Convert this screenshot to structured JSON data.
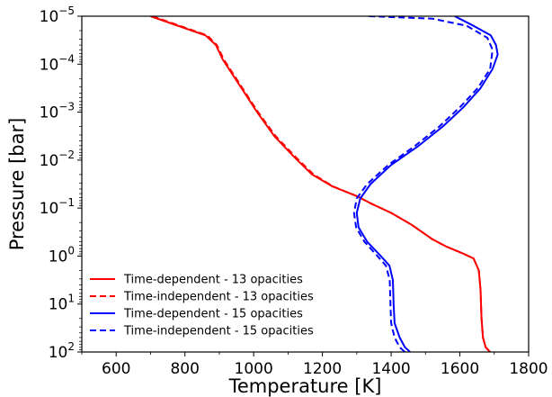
{
  "chart_data": {
    "type": "line",
    "xlabel": "Temperature [K]",
    "ylabel": "Pressure [bar]",
    "xlim": [
      500,
      1800
    ],
    "ylim_log10": [
      2,
      -5
    ],
    "y_scale": "log",
    "y_inverted": true,
    "grid": false,
    "legend_position": "lower-left",
    "x_ticks": [
      {
        "value": 600,
        "label": "600"
      },
      {
        "value": 800,
        "label": "800"
      },
      {
        "value": 1000,
        "label": "1000"
      },
      {
        "value": 1200,
        "label": "1200"
      },
      {
        "value": 1400,
        "label": "1400"
      },
      {
        "value": 1600,
        "label": "1600"
      },
      {
        "value": 1800,
        "label": "1800"
      }
    ],
    "y_ticks": [
      {
        "exp": -5,
        "base": "10",
        "sup": "−5"
      },
      {
        "exp": -4,
        "base": "10",
        "sup": "−4"
      },
      {
        "exp": -3,
        "base": "10",
        "sup": "−3"
      },
      {
        "exp": -2,
        "base": "10",
        "sup": "−2"
      },
      {
        "exp": -1,
        "base": "10",
        "sup": "−1"
      },
      {
        "exp": 0,
        "base": "10",
        "sup": "0"
      },
      {
        "exp": 1,
        "base": "10",
        "sup": "1"
      },
      {
        "exp": 2,
        "base": "10",
        "sup": "2"
      }
    ],
    "series": [
      {
        "name": "Time-dependent - 13 opacities",
        "color": "#ff0000",
        "dash": "solid",
        "points": [
          [
            700,
            -5
          ],
          [
            760,
            -4.85
          ],
          [
            860,
            -4.6
          ],
          [
            890,
            -4.4
          ],
          [
            910,
            -4.1
          ],
          [
            960,
            -3.55
          ],
          [
            1010,
            -3.0
          ],
          [
            1060,
            -2.5
          ],
          [
            1120,
            -2.05
          ],
          [
            1170,
            -1.7
          ],
          [
            1230,
            -1.45
          ],
          [
            1300,
            -1.25
          ],
          [
            1340,
            -1.1
          ],
          [
            1400,
            -0.9
          ],
          [
            1460,
            -0.65
          ],
          [
            1520,
            -0.35
          ],
          [
            1560,
            -0.2
          ],
          [
            1610,
            -0.05
          ],
          [
            1640,
            0.05
          ],
          [
            1655,
            0.3
          ],
          [
            1660,
            0.7
          ],
          [
            1663,
            1.3
          ],
          [
            1667,
            1.7
          ],
          [
            1675,
            1.9
          ],
          [
            1688,
            2.0
          ]
        ]
      },
      {
        "name": "Time-independent - 13 opacities",
        "color": "#ff0000",
        "dash": "dashed",
        "points": [
          [
            705,
            -5
          ],
          [
            765,
            -4.85
          ],
          [
            865,
            -4.6
          ],
          [
            893,
            -4.4
          ],
          [
            913,
            -4.1
          ],
          [
            963,
            -3.55
          ],
          [
            1013,
            -3.0
          ],
          [
            1064,
            -2.5
          ],
          [
            1124,
            -2.05
          ],
          [
            1174,
            -1.7
          ],
          [
            1232,
            -1.45
          ],
          [
            1300,
            -1.25
          ],
          [
            1340,
            -1.1
          ],
          [
            1400,
            -0.9
          ],
          [
            1460,
            -0.65
          ],
          [
            1520,
            -0.35
          ],
          [
            1560,
            -0.2
          ],
          [
            1610,
            -0.05
          ],
          [
            1640,
            0.05
          ],
          [
            1655,
            0.3
          ],
          [
            1660,
            0.7
          ],
          [
            1663,
            1.3
          ],
          [
            1667,
            1.7
          ],
          [
            1675,
            1.9
          ],
          [
            1688,
            2.0
          ]
        ]
      },
      {
        "name": "Time-dependent - 15 opacities",
        "color": "#0000ff",
        "dash": "solid",
        "points": [
          [
            1585,
            -5
          ],
          [
            1640,
            -4.8
          ],
          [
            1690,
            -4.6
          ],
          [
            1705,
            -4.4
          ],
          [
            1710,
            -4.2
          ],
          [
            1695,
            -3.9
          ],
          [
            1660,
            -3.5
          ],
          [
            1610,
            -3.1
          ],
          [
            1550,
            -2.7
          ],
          [
            1480,
            -2.3
          ],
          [
            1400,
            -1.9
          ],
          [
            1340,
            -1.5
          ],
          [
            1310,
            -1.2
          ],
          [
            1300,
            -0.9
          ],
          [
            1305,
            -0.6
          ],
          [
            1330,
            -0.3
          ],
          [
            1370,
            0.0
          ],
          [
            1395,
            0.2
          ],
          [
            1405,
            0.5
          ],
          [
            1407,
            1.0
          ],
          [
            1410,
            1.4
          ],
          [
            1425,
            1.7
          ],
          [
            1440,
            1.9
          ],
          [
            1455,
            2.0
          ]
        ]
      },
      {
        "name": "Time-independent - 15 opacities",
        "color": "#0000ff",
        "dash": "dashed",
        "points": [
          [
            1335,
            -5
          ],
          [
            1520,
            -4.95
          ],
          [
            1620,
            -4.8
          ],
          [
            1680,
            -4.55
          ],
          [
            1695,
            -4.3
          ],
          [
            1688,
            -3.9
          ],
          [
            1652,
            -3.5
          ],
          [
            1600,
            -3.1
          ],
          [
            1540,
            -2.7
          ],
          [
            1470,
            -2.3
          ],
          [
            1392,
            -1.9
          ],
          [
            1330,
            -1.5
          ],
          [
            1300,
            -1.2
          ],
          [
            1292,
            -0.9
          ],
          [
            1298,
            -0.6
          ],
          [
            1322,
            -0.3
          ],
          [
            1360,
            0.0
          ],
          [
            1385,
            0.2
          ],
          [
            1396,
            0.5
          ],
          [
            1398,
            1.0
          ],
          [
            1400,
            1.4
          ],
          [
            1410,
            1.7
          ],
          [
            1425,
            1.9
          ],
          [
            1440,
            2.0
          ]
        ]
      }
    ]
  }
}
